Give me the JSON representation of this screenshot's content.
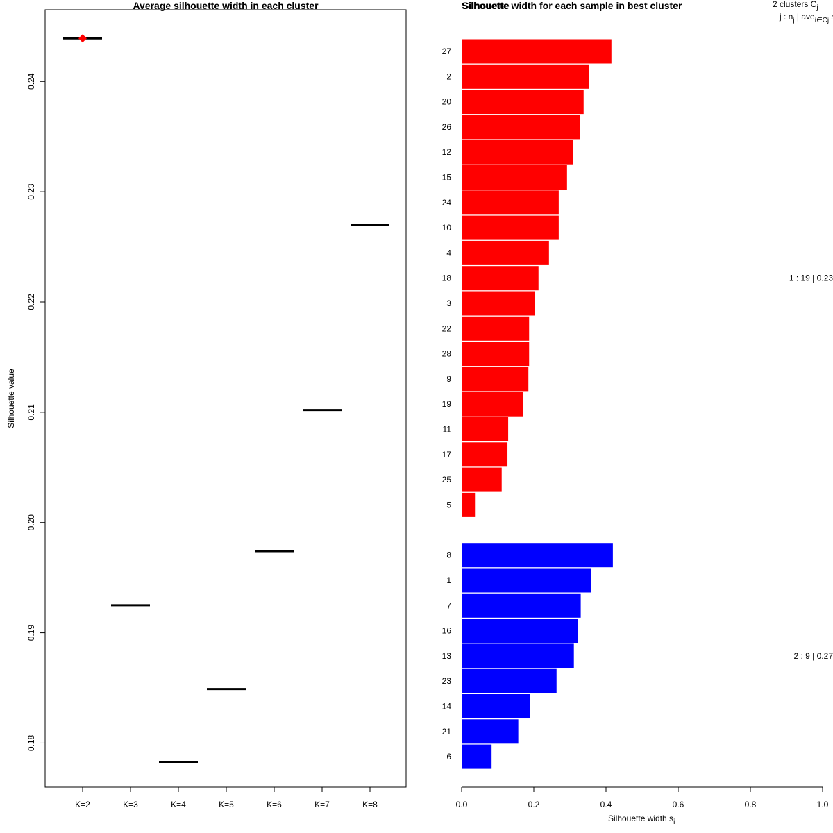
{
  "chart_data": [
    {
      "type": "line",
      "title": "Average silhouette width in each cluster",
      "xlabel": "",
      "ylabel": "Silhouette value",
      "categories": [
        "K=2",
        "K=3",
        "K=4",
        "K=5",
        "K=6",
        "K=7",
        "K=8"
      ],
      "values": [
        0.2439,
        0.1925,
        0.1783,
        0.1849,
        0.1974,
        0.2102,
        0.227
      ],
      "best_index": 0,
      "ylim": [
        0.176,
        0.2465
      ],
      "yticks": [
        "0.18",
        "0.19",
        "0.20",
        "0.21",
        "0.22",
        "0.23",
        "0.24"
      ],
      "ytick_values": [
        0.18,
        0.19,
        0.2,
        0.21,
        0.22,
        0.23,
        0.24
      ],
      "marker_color": "#ff0000"
    },
    {
      "type": "bar",
      "orientation": "horizontal",
      "title": "Silhouette width for each sample in best cluster",
      "title_overlap_fragment": "Silhouette",
      "xlabel": "Silhouette width s",
      "xlabel_sub": "i",
      "xlim": [
        0,
        1
      ],
      "xticks": [
        "0.0",
        "0.2",
        "0.4",
        "0.6",
        "0.8",
        "1.0"
      ],
      "xtick_values": [
        0,
        0.2,
        0.4,
        0.6,
        0.8,
        1.0
      ],
      "legend_header": {
        "line1_a": "2  clusters  C",
        "line1_sub": "j",
        "line2_a": "j :  n",
        "line2_sub1": "j",
        "line2_b": " | ave",
        "line2_sub2": "i∈Cj",
        "line2_c": "  s"
      },
      "series": [
        {
          "name": "1 :  19  |  0.23",
          "color": "#ff0000",
          "labels": [
            "27",
            "2",
            "20",
            "26",
            "12",
            "15",
            "24",
            "10",
            "4",
            "18",
            "3",
            "22",
            "28",
            "9",
            "19",
            "11",
            "17",
            "25",
            "5"
          ],
          "values": [
            0.415,
            0.353,
            0.338,
            0.327,
            0.309,
            0.292,
            0.269,
            0.269,
            0.242,
            0.213,
            0.202,
            0.187,
            0.187,
            0.185,
            0.171,
            0.129,
            0.127,
            0.111,
            0.037
          ]
        },
        {
          "name": "2 :  9  |  0.27",
          "color": "#0000ff",
          "labels": [
            "8",
            "1",
            "7",
            "16",
            "13",
            "23",
            "14",
            "21",
            "6"
          ],
          "values": [
            0.419,
            0.359,
            0.33,
            0.322,
            0.311,
            0.263,
            0.189,
            0.157,
            0.083
          ]
        }
      ]
    }
  ]
}
